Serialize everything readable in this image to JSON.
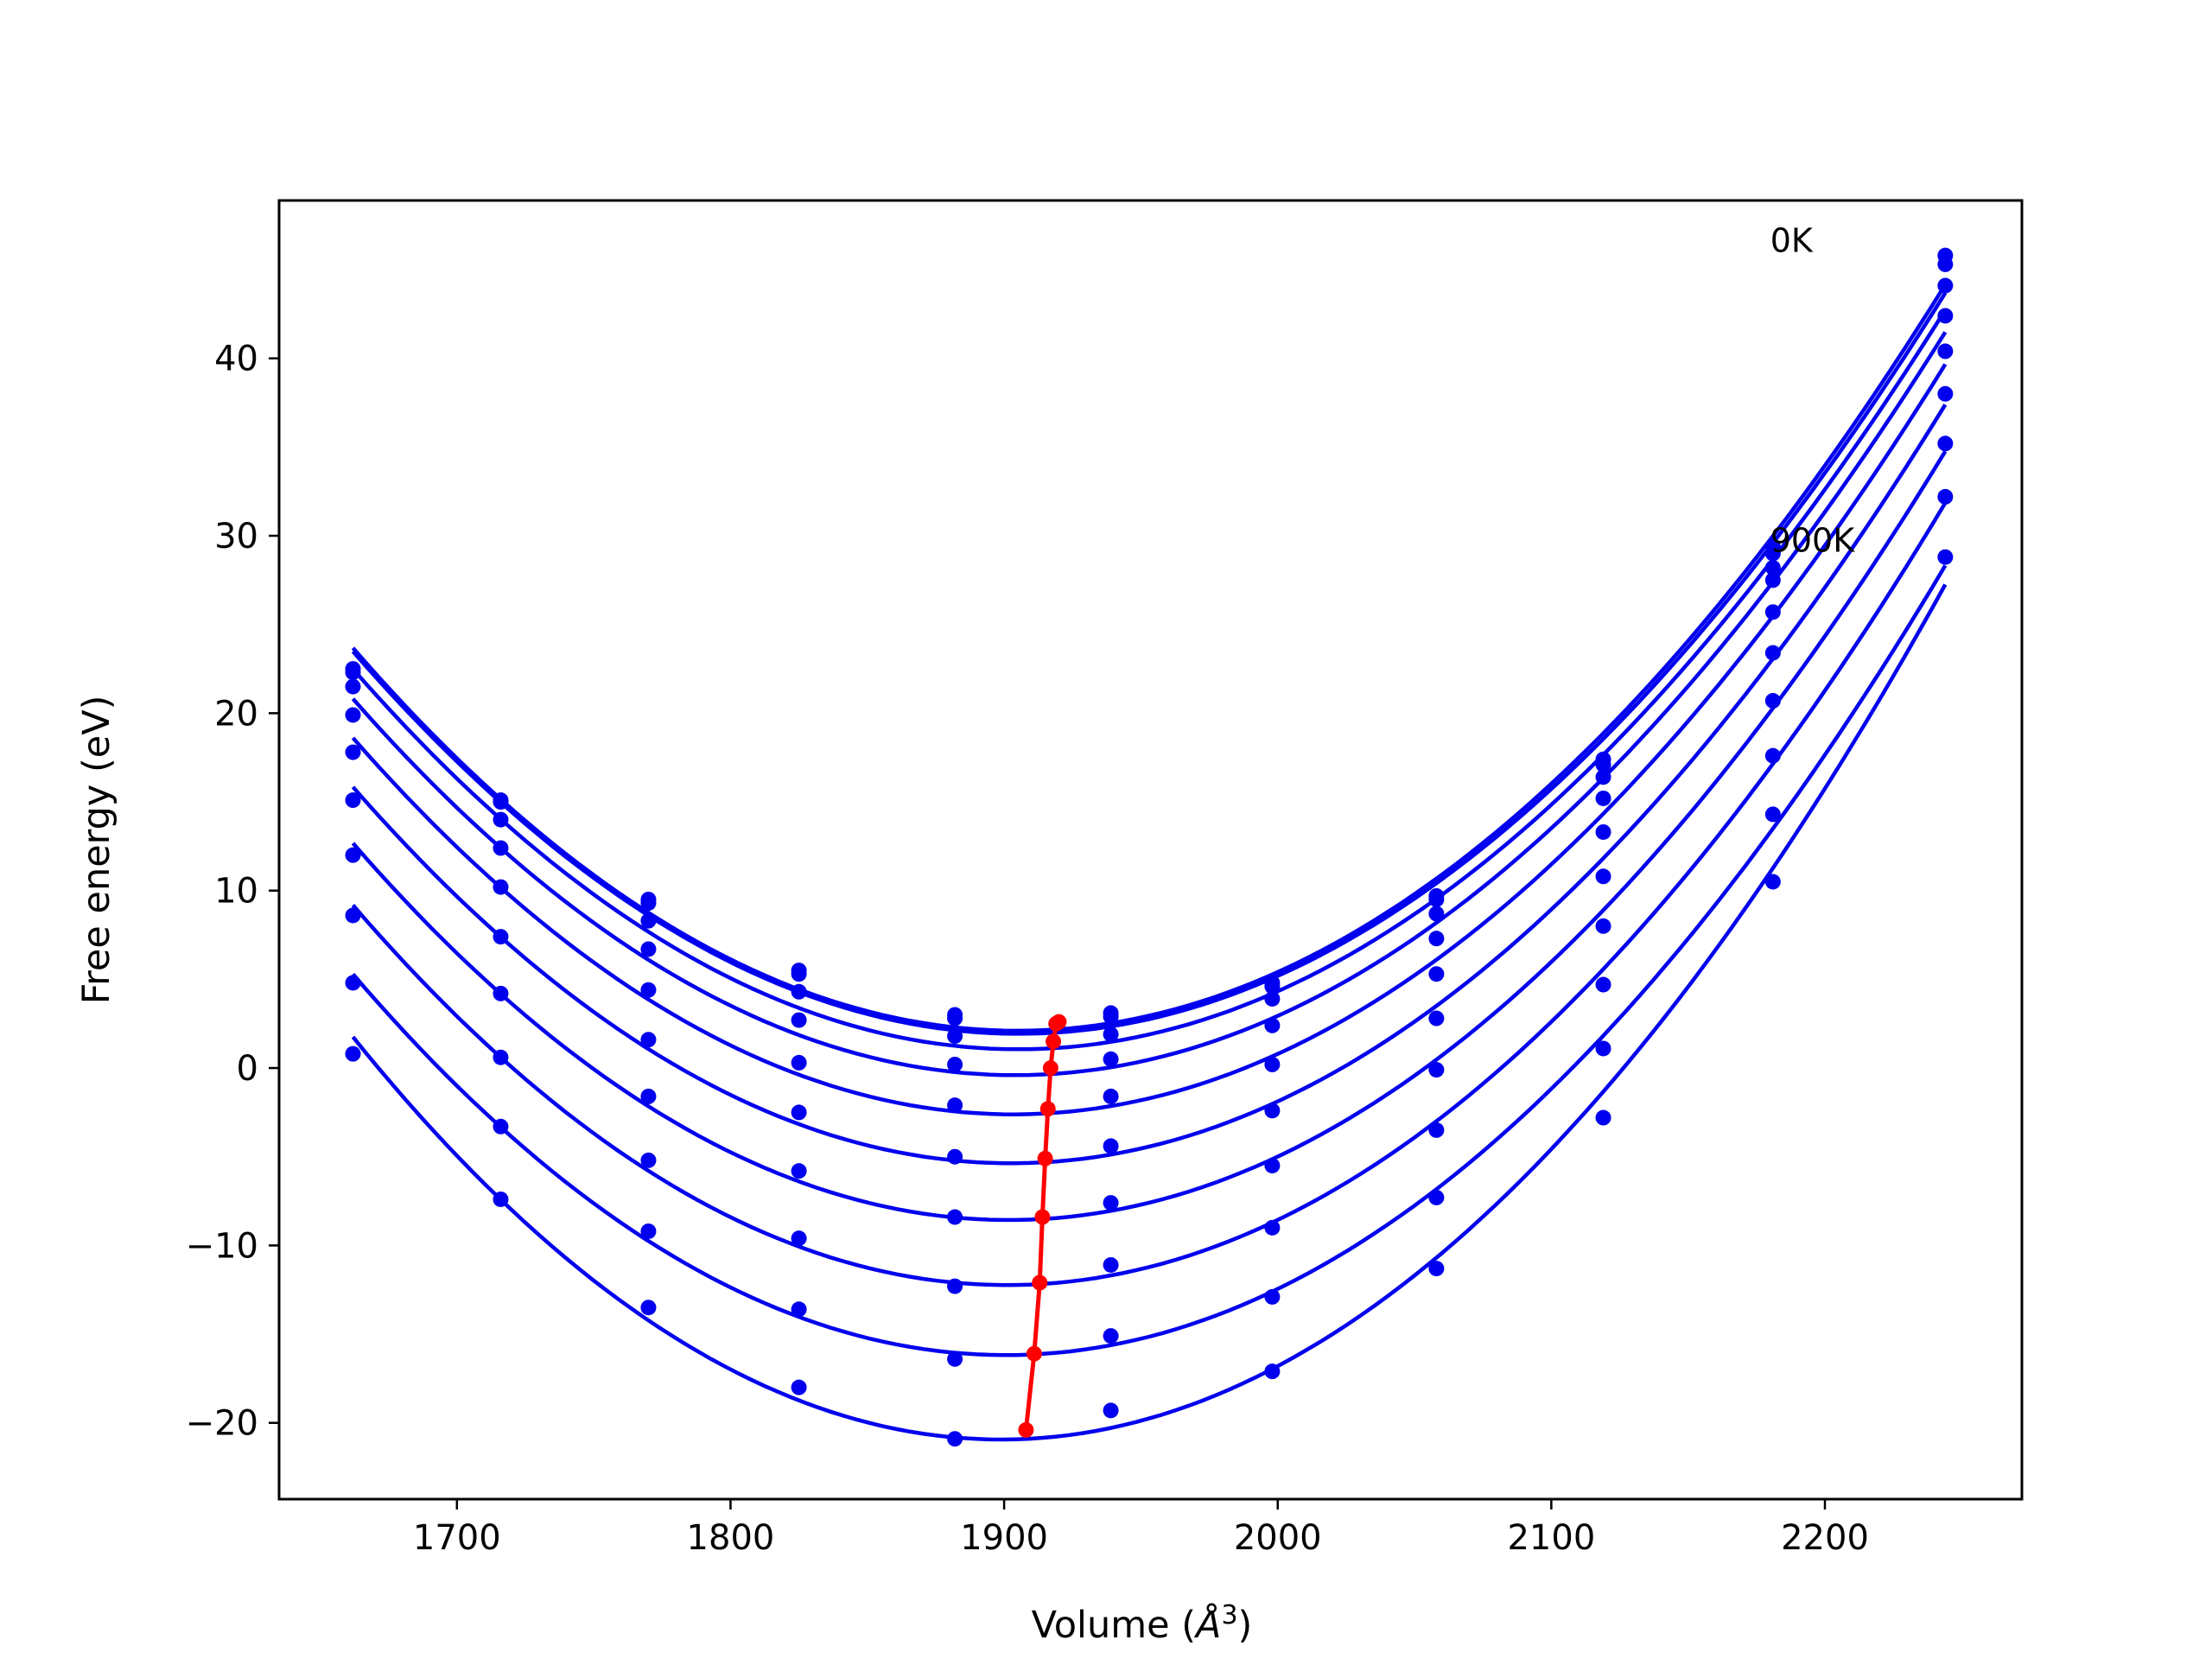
{
  "chart_data": {
    "type": "line",
    "title": "",
    "xlabel_main": "Volume (",
    "xlabel_unit": "Å",
    "xlabel_sup": "3",
    "xlabel_end": ")",
    "ylabel": "Free energy (eV)",
    "xlim": [
      1635,
      2272
    ],
    "ylim": [
      -24.3,
      48.9
    ],
    "xticks": [
      1700,
      1800,
      1900,
      2000,
      2100,
      2200
    ],
    "yticks": [
      -20,
      -10,
      0,
      10,
      20,
      30,
      40
    ],
    "ytick_labels": [
      "−20",
      "−10",
      "0",
      "10",
      "20",
      "30",
      "40"
    ],
    "grid": false,
    "colors": {
      "curves": "#0000ee",
      "minima": "#ff0000",
      "frame": "#000000"
    },
    "x_points": [
      1662,
      1716,
      1770,
      1825,
      1882,
      1939,
      1998,
      2058,
      2119,
      2181,
      2244
    ],
    "series": [
      {
        "label": "0K",
        "points": [
          22.5,
          15.1,
          9.5,
          5.5,
          3.0,
          3.1,
          4.8,
          9.7,
          17.4,
          29.4,
          45.8
        ]
      },
      {
        "points": [
          22.3,
          15.0,
          9.3,
          5.3,
          2.8,
          2.9,
          4.6,
          9.5,
          17.1,
          29.0,
          45.3
        ]
      },
      {
        "points": [
          21.5,
          14.0,
          8.3,
          4.3,
          1.8,
          1.9,
          3.9,
          8.7,
          16.4,
          28.2,
          44.1
        ]
      },
      {
        "points": [
          19.9,
          12.4,
          6.7,
          2.7,
          0.2,
          0.5,
          2.4,
          7.3,
          15.2,
          27.5,
          42.4
        ]
      },
      {
        "points": [
          17.8,
          10.2,
          4.4,
          0.3,
          -2.1,
          -1.6,
          0.2,
          5.3,
          13.3,
          25.7,
          40.4
        ]
      },
      {
        "points": [
          15.1,
          7.4,
          1.6,
          -2.5,
          -5.0,
          -4.4,
          -2.4,
          2.8,
          10.8,
          23.4,
          38.0
        ]
      },
      {
        "points": [
          12.0,
          4.2,
          -1.6,
          -5.8,
          -8.4,
          -7.6,
          -5.5,
          -0.1,
          8.0,
          20.7,
          35.2
        ]
      },
      {
        "points": [
          8.6,
          0.6,
          -5.2,
          -9.6,
          -12.3,
          -11.1,
          -9.0,
          -3.5,
          4.7,
          17.6,
          32.2
        ]
      },
      {
        "points": [
          4.8,
          -3.3,
          -9.2,
          -13.6,
          -16.4,
          -15.1,
          -12.9,
          -7.3,
          1.1,
          14.3,
          null
        ]
      },
      {
        "label": "900K",
        "points": [
          0.8,
          -7.4,
          -13.5,
          -18.0,
          -20.9,
          -19.3,
          -17.1,
          -11.3,
          -2.8,
          10.5,
          28.8
        ]
      }
    ],
    "minima": {
      "x": [
        1920,
        1919,
        1918,
        1917,
        1916,
        1915,
        1914,
        1913,
        1911,
        1908
      ],
      "y": [
        2.6,
        2.5,
        1.5,
        0.0,
        -2.3,
        -5.1,
        -8.4,
        -12.1,
        -16.1,
        -20.4
      ]
    },
    "annotations": [
      {
        "text": "0K",
        "x": 2180,
        "y": 46.0
      },
      {
        "text": "900K",
        "x": 2180,
        "y": 29.1
      }
    ]
  }
}
